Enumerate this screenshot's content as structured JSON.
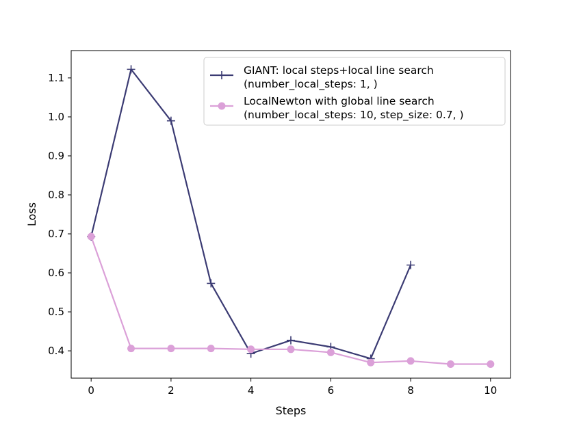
{
  "chart_data": {
    "type": "line",
    "title": "",
    "xlabel": "Steps",
    "ylabel": "Loss",
    "xlim": [
      -0.5,
      10.5
    ],
    "ylim": [
      0.33,
      1.17
    ],
    "xticks": [
      0,
      2,
      4,
      6,
      8,
      10
    ],
    "yticks": [
      0.4,
      0.5,
      0.6,
      0.7,
      0.8,
      0.9,
      1.0,
      1.1
    ],
    "ytick_labels": [
      "0.4",
      "0.5",
      "0.6",
      "0.7",
      "0.8",
      "0.9",
      "1.0",
      "1.1"
    ],
    "grid": false,
    "legend_position": "top-right",
    "series": [
      {
        "name_lines": [
          "GIANT: local steps+local line search",
          "(number_local_steps: 1, )"
        ],
        "color": "#3b3b73",
        "marker": "plus",
        "x": [
          0,
          1,
          2,
          3,
          4,
          5,
          6,
          7,
          8
        ],
        "y": [
          0.693,
          1.122,
          0.99,
          0.573,
          0.393,
          0.427,
          0.41,
          0.38,
          0.62
        ]
      },
      {
        "name_lines": [
          "LocalNewton with global line search",
          "(number_local_steps: 10, step_size: 0.7, )"
        ],
        "color": "#dba0d8",
        "marker": "circle",
        "x": [
          0,
          1,
          2,
          3,
          4,
          5,
          6,
          7,
          8,
          9,
          10
        ],
        "y": [
          0.693,
          0.406,
          0.406,
          0.406,
          0.404,
          0.404,
          0.396,
          0.37,
          0.374,
          0.366,
          0.366
        ]
      }
    ]
  }
}
